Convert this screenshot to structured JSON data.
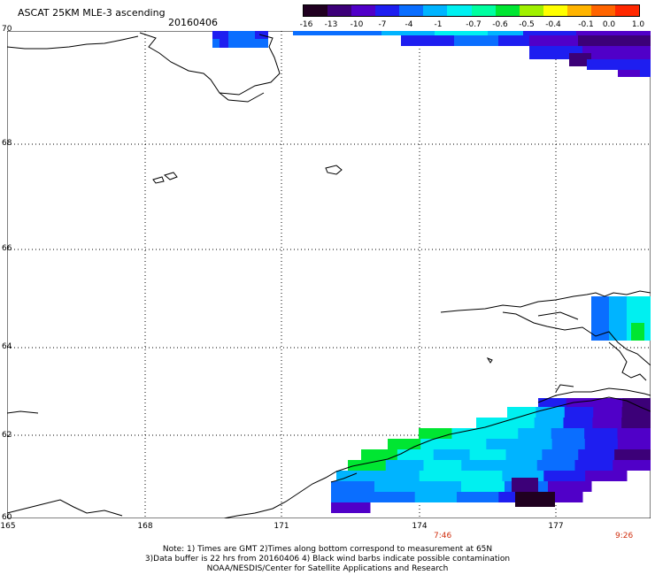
{
  "header": {
    "title": "ASCAT 25KM MLE-3 ascending",
    "date": "20160406"
  },
  "colorbar": {
    "labels": [
      "-16",
      "-13",
      "-10",
      "-7",
      "-4",
      "-1",
      "-0.7",
      "-0.6",
      "-0.5",
      "-0.4",
      "-0.1",
      "0.0",
      "1.0"
    ],
    "colors": [
      "#200020",
      "#3c0078",
      "#5000c8",
      "#1e1ef0",
      "#0a6eff",
      "#00b4ff",
      "#00f0f0",
      "#00ffa0",
      "#00e632",
      "#a0f000",
      "#ffff00",
      "#ffb400",
      "#ff6400",
      "#ff2800"
    ]
  },
  "map": {
    "lat_labels": [
      "70",
      "68",
      "66",
      "64",
      "62",
      "60"
    ],
    "lon_labels": [
      "165",
      "168",
      "171",
      "174",
      "177"
    ],
    "pass_times": [
      "7:46",
      "9:26"
    ]
  },
  "footer": {
    "line1": "Note: 1) Times are GMT 2)Times along bottom correspond to measurement at 65N",
    "line2": "3)Data buffer is 22 hrs from 20160406 4) Black wind barbs indicate possible contamination",
    "line3": "NOAA/NESDIS/Center for Satellite Applications and Research"
  }
}
